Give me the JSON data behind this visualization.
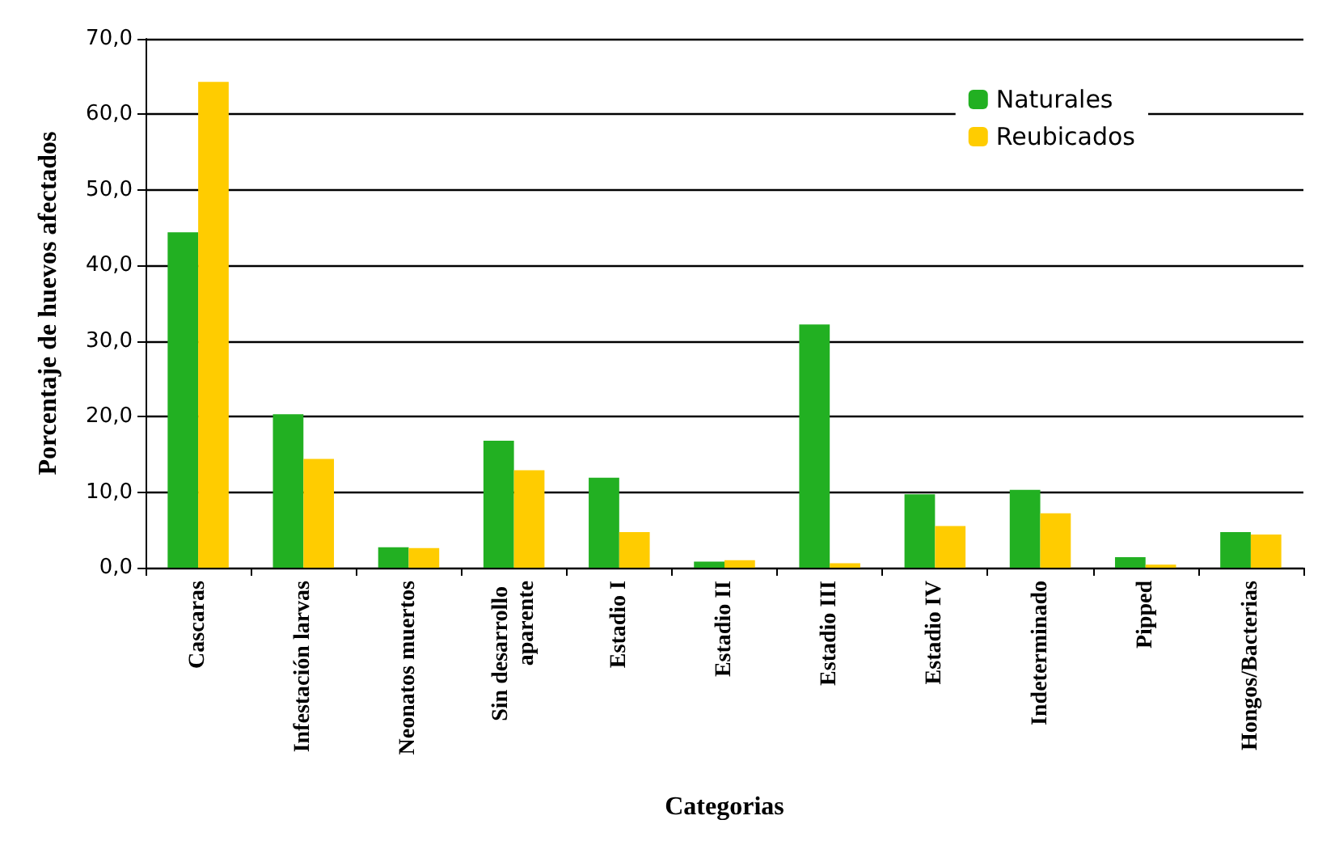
{
  "chart_data": {
    "type": "bar",
    "xlabel": "Categorias",
    "ylabel": "Porcentaje de huevos afectados",
    "categories": [
      "Cascaras",
      "Infestación larvas",
      "Neonatos muertos",
      "Sin desarrollo aparente",
      "Estadio I",
      "Estadio II",
      "Estadio III",
      "Estadio IV",
      "Indeterminado",
      "Pipped",
      "Hongos/Bacterias"
    ],
    "series": [
      {
        "name": "Naturales",
        "color": "#22b022",
        "values": [
          44.4,
          20.3,
          2.7,
          16.8,
          11.9,
          0.8,
          32.2,
          9.7,
          10.3,
          1.4,
          4.7
        ]
      },
      {
        "name": "Reubicados",
        "color": "#ffcc00",
        "values": [
          64.3,
          14.4,
          2.6,
          12.9,
          4.7,
          1.0,
          0.6,
          5.5,
          7.2,
          0.4,
          4.4
        ]
      }
    ],
    "ylim": [
      0,
      70
    ],
    "yticks": [
      {
        "value": 0,
        "label": "0,0"
      },
      {
        "value": 10,
        "label": "10,0"
      },
      {
        "value": 20,
        "label": "20,0"
      },
      {
        "value": 30,
        "label": "30,0"
      },
      {
        "value": 40,
        "label": "40,0"
      },
      {
        "value": 50,
        "label": "50,0"
      },
      {
        "value": 60,
        "label": "60,0"
      },
      {
        "value": 70,
        "label": "70,0"
      }
    ],
    "grid": "y",
    "legend": "top right"
  }
}
